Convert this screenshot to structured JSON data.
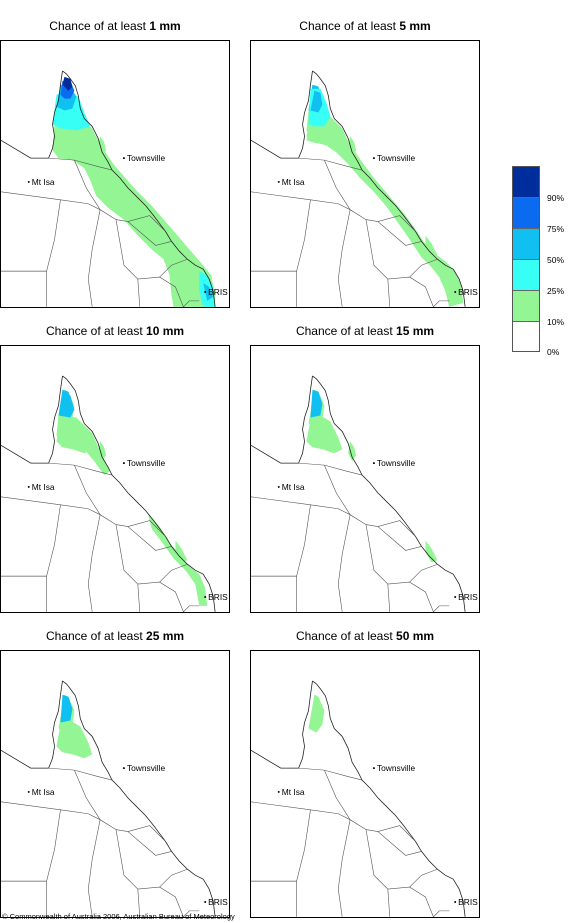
{
  "panels": [
    {
      "title_prefix": "Chance of at least ",
      "threshold": "1 mm",
      "level": 6
    },
    {
      "title_prefix": "Chance of at least ",
      "threshold": "5 mm",
      "level": 4
    },
    {
      "title_prefix": "Chance of at least ",
      "threshold": "10 mm",
      "level": 3
    },
    {
      "title_prefix": "Chance of at least ",
      "threshold": "15 mm",
      "level": 2
    },
    {
      "title_prefix": "Chance of at least ",
      "threshold": "25 mm",
      "level": 1.5
    },
    {
      "title_prefix": "Chance of at least ",
      "threshold": "50 mm",
      "level": 0.5
    }
  ],
  "towns": {
    "townsville": "Townsville",
    "mt_isa": "Mt Isa",
    "bris": "BRIS"
  },
  "legend": {
    "labels": [
      "90%",
      "75%",
      "50%",
      "25%",
      "10%",
      "0%"
    ],
    "colors": [
      "#002d9c",
      "#0a6bf0",
      "#10c0f0",
      "#38fff6",
      "#93f593",
      "#ffffff"
    ]
  },
  "footer": "© Commonwealth of Australia 2006, Australian Bureau of Meteorology"
}
